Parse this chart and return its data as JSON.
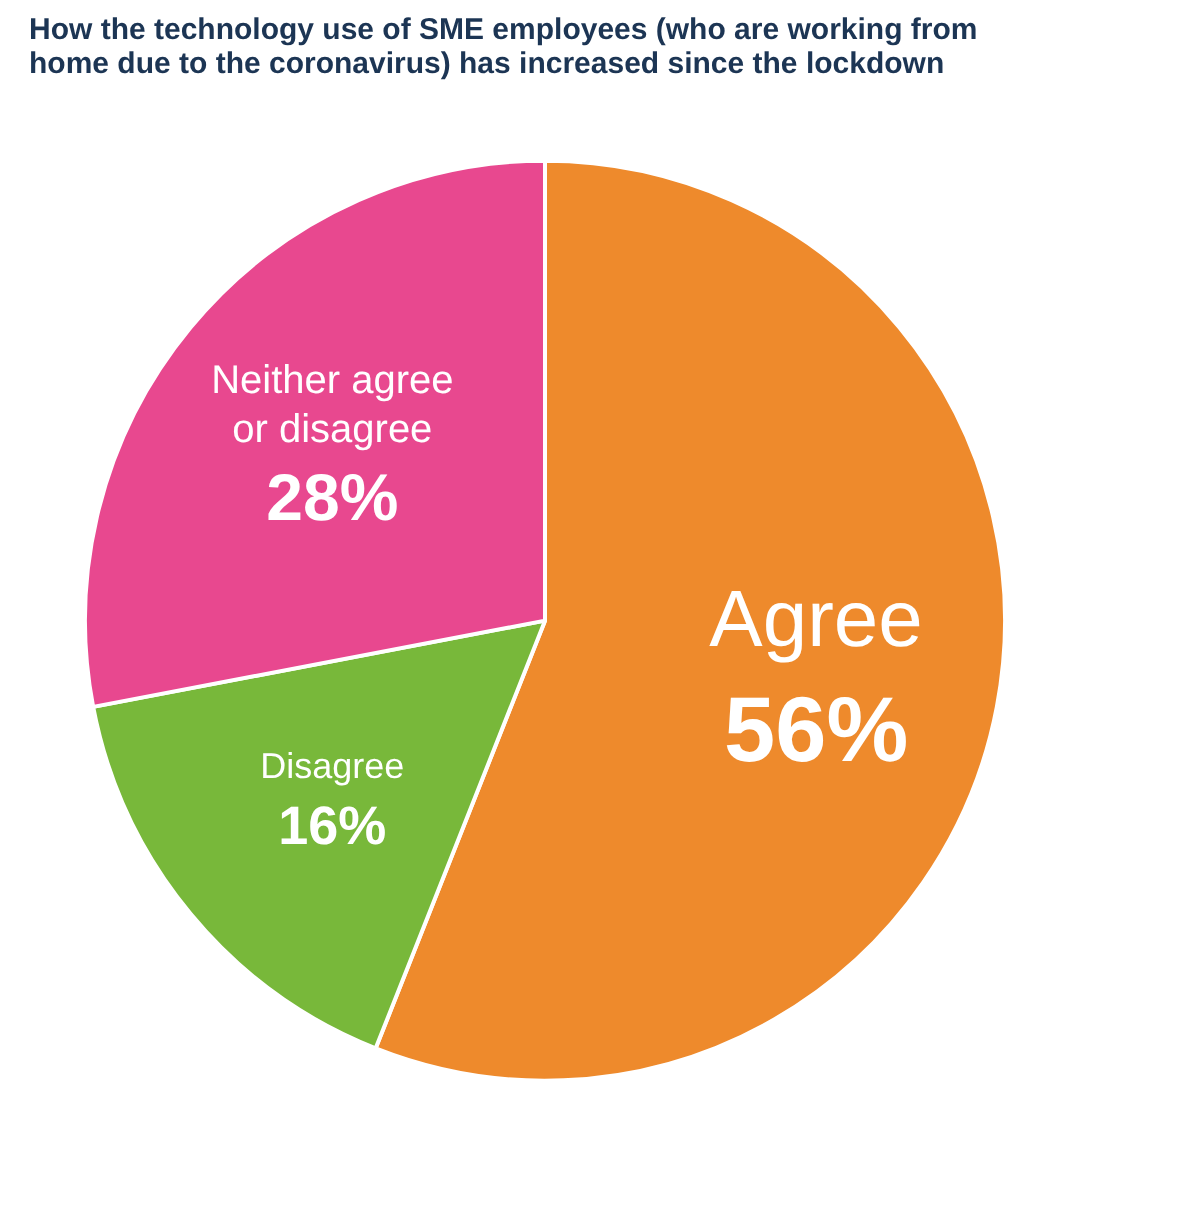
{
  "chart_data": {
    "type": "pie",
    "title": "How the technology use of SME employees (who are working from home due to the coronavirus) has increased since the lockdown",
    "categories": [
      "Agree",
      "Disagree",
      "Neither agree or disagree"
    ],
    "values": [
      56,
      16,
      28
    ],
    "colors": [
      "#ee8a2c",
      "#78b83a",
      "#e8488f"
    ],
    "value_labels": [
      "56%",
      "16%",
      "28%"
    ]
  }
}
